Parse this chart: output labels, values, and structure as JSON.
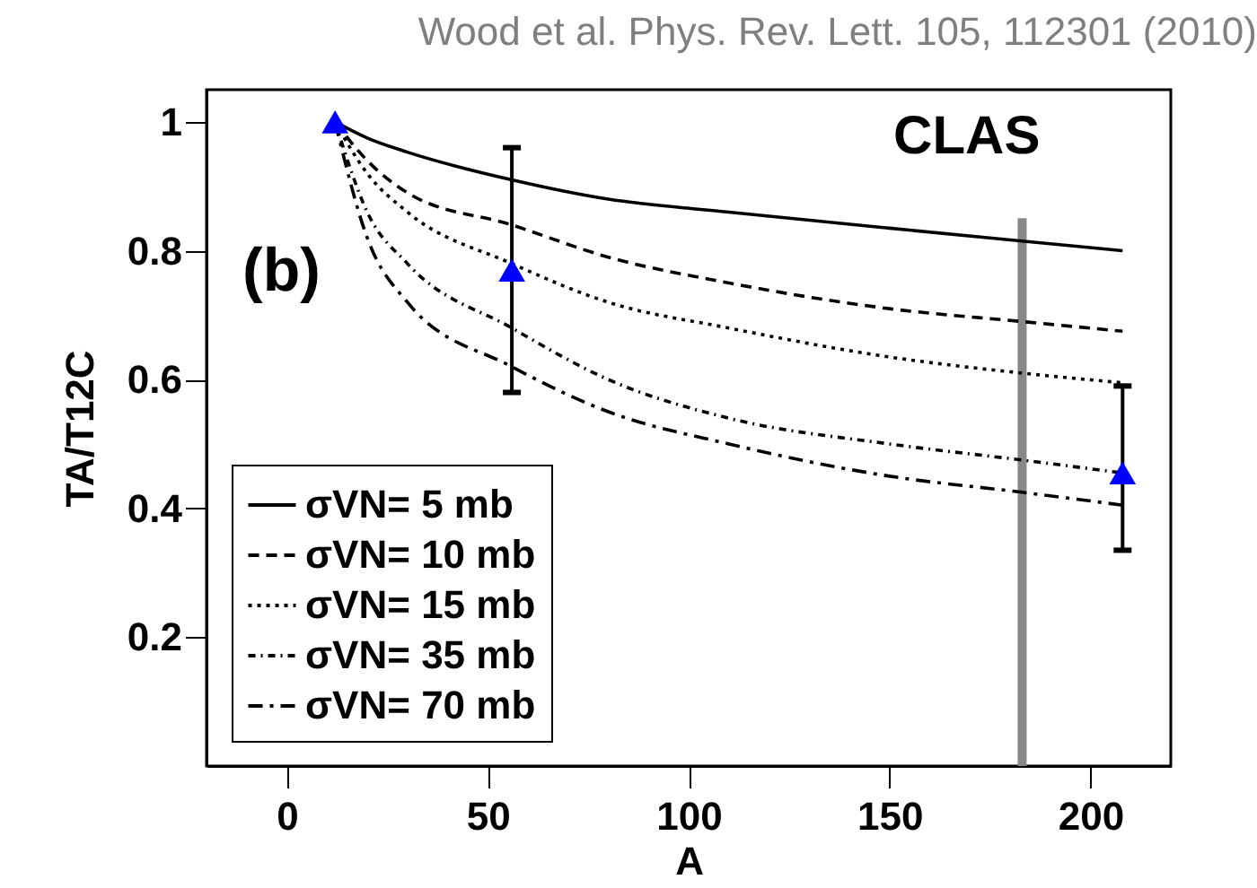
{
  "chart_data": {
    "type": "line",
    "xlabel": "A",
    "ylabel": "TA/T12C",
    "xlim": [
      -20,
      220
    ],
    "ylim": [
      0,
      1.05
    ],
    "xticks": [
      0,
      50,
      100,
      150,
      200
    ],
    "yticks": [
      0.2,
      0.4,
      0.6,
      0.8,
      1
    ],
    "legend": "bottom left",
    "series": [
      {
        "name": "σVN= 5 mb",
        "color": "#000000",
        "line_style": "solid",
        "x": [
          12,
          20,
          30,
          56,
          80,
          110,
          150,
          183,
          208
        ],
        "values": [
          1.0,
          0.975,
          0.953,
          0.91,
          0.88,
          0.86,
          0.835,
          0.815,
          0.8
        ]
      },
      {
        "name": "σVN= 10 mb",
        "color": "#000000",
        "line_style": "dashed",
        "x": [
          12,
          20,
          30,
          56,
          80,
          110,
          150,
          183,
          208
        ],
        "values": [
          1.0,
          0.94,
          0.89,
          0.84,
          0.79,
          0.75,
          0.71,
          0.69,
          0.675
        ]
      },
      {
        "name": "σVN= 15 mb",
        "color": "#000000",
        "line_style": "dotted",
        "x": [
          12,
          20,
          30,
          56,
          80,
          110,
          150,
          183,
          208
        ],
        "values": [
          1.0,
          0.92,
          0.86,
          0.78,
          0.72,
          0.68,
          0.635,
          0.61,
          0.595
        ]
      },
      {
        "name": "σVN= 35 mb",
        "color": "#000000",
        "line_style": "dashdotdot",
        "x": [
          12,
          20,
          30,
          56,
          80,
          110,
          150,
          183,
          208
        ],
        "values": [
          1.0,
          0.86,
          0.78,
          0.68,
          0.6,
          0.54,
          0.5,
          0.475,
          0.455
        ]
      },
      {
        "name": "σVN= 70 mb",
        "color": "#000000",
        "line_style": "dashdot",
        "x": [
          12,
          20,
          30,
          56,
          80,
          110,
          150,
          183,
          208
        ],
        "values": [
          1.0,
          0.82,
          0.72,
          0.62,
          0.55,
          0.5,
          0.45,
          0.425,
          0.405
        ]
      },
      {
        "type": "scatter",
        "marker": "triangle",
        "color": "#0000ff",
        "x": [
          12,
          56,
          208
        ],
        "values": [
          1.0,
          0.77,
          0.455
        ],
        "errors": [
          null,
          [
            0.58,
            0.96
          ],
          [
            0.335,
            0.59
          ]
        ]
      }
    ],
    "ref_lines": [
      {
        "axis": "x",
        "value": 183,
        "label": "CLAS",
        "color": "#888888"
      }
    ],
    "annotations": [
      "Wood et al. Phys. Rev. Lett. 105, 112301 (2010)",
      "(b)"
    ]
  }
}
